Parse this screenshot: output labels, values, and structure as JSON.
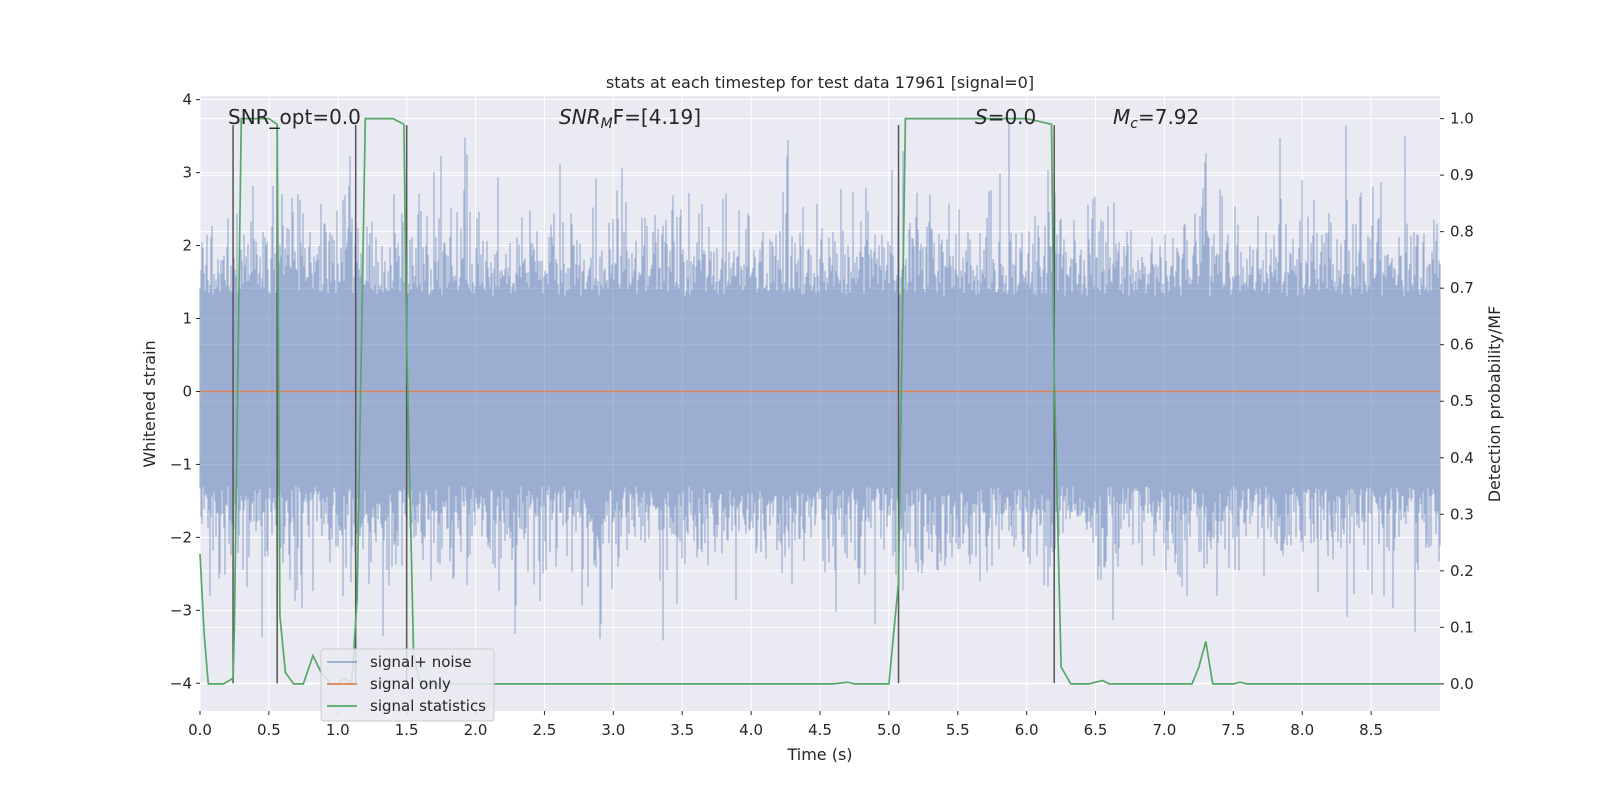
{
  "chart_data": {
    "type": "line",
    "title": "stats at each timestep for test data 17961 [signal=0]",
    "xlabel": "Time (s)",
    "ylabel_left": "Whitened strain",
    "ylabel_right": "Detection probability/MF",
    "xlim": [
      0.0,
      9.0
    ],
    "ylim_left": [
      -4.38,
      4.05
    ],
    "ylim_right": [
      -0.048,
      1.04
    ],
    "x_ticks": [
      "0.0",
      "0.5",
      "1.0",
      "1.5",
      "2.0",
      "2.5",
      "3.0",
      "3.5",
      "4.0",
      "4.5",
      "5.0",
      "5.5",
      "6.0",
      "6.5",
      "7.0",
      "7.5",
      "8.0",
      "8.5"
    ],
    "y_ticks_left": [
      "−4",
      "−3",
      "−2",
      "−1",
      "0",
      "1",
      "2",
      "3",
      "4"
    ],
    "y_ticks_right": [
      "0.0",
      "0.1",
      "0.2",
      "0.3",
      "0.4",
      "0.5",
      "0.6",
      "0.7",
      "0.8",
      "0.9",
      "1.0"
    ],
    "annotations": {
      "snr_opt": "SNR_opt=0.0",
      "snr_mf_base": "SNR",
      "snr_mf_sub": "M",
      "snr_mf_rest": "F=[4.19]",
      "s_label": "S",
      "s_value": "=0.0",
      "mc_base": "M",
      "mc_sub": "c",
      "mc_value": "=7.92"
    },
    "legend": {
      "placement": "lower-left",
      "entries": [
        "signal+ noise",
        "signal only",
        "signal statistics"
      ]
    },
    "colors": {
      "noise": "#4c72b0",
      "signal": "#dd8452",
      "stat": "#55a868",
      "plot_bg": "#eaeaf2",
      "grid": "#ffffff",
      "vline": "#555555"
    },
    "series": [
      {
        "name": "signal statistics",
        "axis": "right",
        "x": [
          0.0,
          0.03,
          0.06,
          0.1,
          0.17,
          0.24,
          0.25,
          0.3,
          0.35,
          0.45,
          0.5,
          0.56,
          0.58,
          0.62,
          0.68,
          0.75,
          0.82,
          0.88,
          0.95,
          1.0,
          1.05,
          1.1,
          1.14,
          1.2,
          1.25,
          1.4,
          1.48,
          1.5,
          1.55,
          1.6,
          2.0,
          3.0,
          4.0,
          4.6,
          4.7,
          4.75,
          4.9,
          5.0,
          5.07,
          5.12,
          5.5,
          6.0,
          6.18,
          6.2,
          6.25,
          6.32,
          6.45,
          6.55,
          6.6,
          6.7,
          7.0,
          7.2,
          7.25,
          7.3,
          7.35,
          7.5,
          7.55,
          7.6,
          8.0,
          8.5,
          9.0
        ],
        "y": [
          0.23,
          0.09,
          0.0,
          0.0,
          0.0,
          0.01,
          0.1,
          1.0,
          1.0,
          1.0,
          1.0,
          0.99,
          0.12,
          0.02,
          0.0,
          0.0,
          0.05,
          0.02,
          0.0,
          0.0,
          0.01,
          0.0,
          0.15,
          1.0,
          1.0,
          1.0,
          0.99,
          0.6,
          0.05,
          0.0,
          0.0,
          0.0,
          0.0,
          0.0,
          0.003,
          0.0,
          0.0,
          0.0,
          0.18,
          1.0,
          1.0,
          1.0,
          0.99,
          0.55,
          0.03,
          0.0,
          0.0,
          0.006,
          0.0,
          0.0,
          0.0,
          0.0,
          0.03,
          0.075,
          0.0,
          0.0,
          0.003,
          0.0,
          0.0,
          0.0,
          0.0
        ]
      },
      {
        "name": "signal only",
        "axis": "left",
        "x": [
          0.0,
          9.0
        ],
        "y": [
          0.0,
          0.0
        ]
      },
      {
        "name": "signal+ noise",
        "axis": "left",
        "description_values": "dense whitened Gaussian noise, roughly within ±2 with peaks up to ±3.7",
        "x_range": [
          0.0,
          9.0
        ],
        "y_extent": [
          -4.0,
          3.7
        ]
      }
    ],
    "trigger_lines": {
      "axis": "left",
      "x": [
        0.24,
        0.56,
        1.13,
        1.5,
        5.07,
        6.2
      ],
      "y_range": [
        -4.0,
        3.65
      ]
    }
  }
}
